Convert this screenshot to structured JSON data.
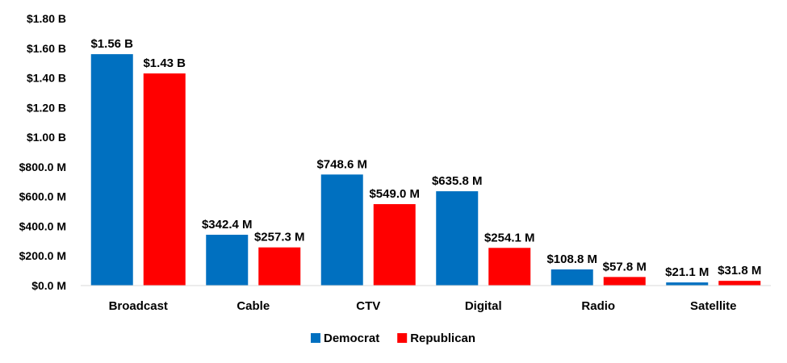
{
  "chart_data": {
    "type": "bar",
    "title": "",
    "xlabel": "",
    "ylabel": "",
    "ylim": [
      0,
      1800000000
    ],
    "yticks": [
      0,
      200000000,
      400000000,
      600000000,
      800000000,
      1000000000,
      1200000000,
      1400000000,
      1600000000,
      1800000000
    ],
    "ytick_labels": [
      "$0.0 M",
      "$200.0 M",
      "$400.0 M",
      "$600.0 M",
      "$800.0 M",
      "$1.00 B",
      "$1.20 B",
      "$1.40 B",
      "$1.60 B",
      "$1.80 B"
    ],
    "categories": [
      "Broadcast",
      "Cable",
      "CTV",
      "Digital",
      "Radio",
      "Satellite"
    ],
    "series": [
      {
        "name": "Democrat",
        "color": "#0070C0",
        "values": [
          1560000000,
          342400000,
          748600000,
          635800000,
          108800000,
          21100000
        ],
        "labels": [
          "$1.56 B",
          "$342.4 M",
          "$748.6 M",
          "$635.8 M",
          "$108.8 M",
          "$21.1 M"
        ]
      },
      {
        "name": "Republican",
        "color": "#FF0000",
        "values": [
          1430000000,
          257300000,
          549000000,
          254100000,
          57800000,
          31800000
        ],
        "labels": [
          "$1.43 B",
          "$257.3 M",
          "$549.0 M",
          "$254.1 M",
          "$57.8 M",
          "$31.8 M"
        ]
      }
    ],
    "grid": false,
    "legend_position": "bottom"
  }
}
